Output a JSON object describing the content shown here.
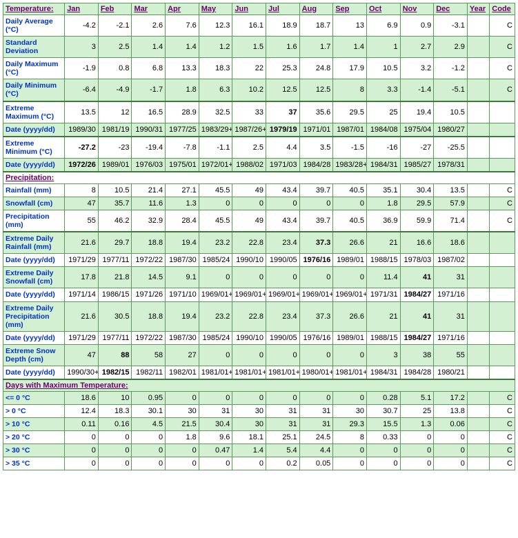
{
  "colgroup": {
    "label_w": 88,
    "month_w": 48,
    "year_w": 32,
    "code_w": 36
  },
  "headers": [
    "Jan",
    "Feb",
    "Mar",
    "Apr",
    "May",
    "Jun",
    "Jul",
    "Aug",
    "Sep",
    "Oct",
    "Nov",
    "Dec",
    "Year",
    "Code"
  ],
  "sections": [
    {
      "title": "Temperature:",
      "shade": true,
      "section_sep": false,
      "rows": [
        {
          "label": "Daily Average (°C)",
          "shade": false,
          "code": "C",
          "cells": [
            "-4.2",
            "-2.1",
            "2.6",
            "7.6",
            "12.3",
            "16.1",
            "18.9",
            "18.7",
            "13",
            "6.9",
            "0.9",
            "-3.1",
            ""
          ],
          "bold": []
        },
        {
          "label": "Standard Deviation",
          "shade": true,
          "code": "C",
          "cells": [
            "3",
            "2.5",
            "1.4",
            "1.4",
            "1.2",
            "1.5",
            "1.6",
            "1.7",
            "1.4",
            "1",
            "2.7",
            "2.9",
            ""
          ],
          "bold": []
        },
        {
          "label": "Daily Maximum (°C)",
          "shade": false,
          "code": "C",
          "cells": [
            "-1.9",
            "0.8",
            "6.8",
            "13.3",
            "18.3",
            "22",
            "25.3",
            "24.8",
            "17.9",
            "10.5",
            "3.2",
            "-1.2",
            ""
          ],
          "bold": []
        },
        {
          "label": "Daily Minimum (°C)",
          "shade": true,
          "code": "C",
          "cells": [
            "-6.4",
            "-4.9",
            "-1.7",
            "1.8",
            "6.3",
            "10.2",
            "12.5",
            "12.5",
            "8",
            "3.3",
            "-1.4",
            "-5.1",
            ""
          ],
          "bold": []
        },
        {
          "label": "Extreme Maximum (°C)",
          "shade": false,
          "sep": true,
          "code": "",
          "cells": [
            "13.5",
            "12",
            "16.5",
            "28.9",
            "32.5",
            "33",
            "37",
            "35.6",
            "29.5",
            "25",
            "19.4",
            "10.5",
            ""
          ],
          "bold": [
            6
          ]
        },
        {
          "label": "Date (yyyy/dd)",
          "shade": true,
          "code": "",
          "cells": [
            "1989/30",
            "1981/19",
            "1990/31",
            "1977/25",
            "1983/29+",
            "1987/26+",
            "1979/19",
            "1971/01",
            "1987/01",
            "1984/08",
            "1975/04",
            "1980/27",
            ""
          ],
          "bold": [
            6
          ]
        },
        {
          "label": "Extreme Minimum (°C)",
          "shade": false,
          "sep": true,
          "code": "",
          "cells": [
            "-27.2",
            "-23",
            "-19.4",
            "-7.8",
            "-1.1",
            "2.5",
            "4.4",
            "3.5",
            "-1.5",
            "-16",
            "-27",
            "-25.5",
            ""
          ],
          "bold": [
            0
          ]
        },
        {
          "label": "Date (yyyy/dd)",
          "shade": true,
          "code": "",
          "cells": [
            "1972/26",
            "1989/01",
            "1976/03",
            "1975/01",
            "1972/01+",
            "1988/02",
            "1971/03",
            "1984/28",
            "1983/28+",
            "1984/31",
            "1985/27",
            "1978/31",
            ""
          ],
          "bold": [
            0
          ]
        }
      ]
    },
    {
      "title": "Precipitation:",
      "shade": false,
      "section_sep": true,
      "rows": [
        {
          "label": "Rainfall (mm)",
          "shade": false,
          "code": "C",
          "cells": [
            "8",
            "10.5",
            "21.4",
            "27.1",
            "45.5",
            "49",
            "43.4",
            "39.7",
            "40.5",
            "35.1",
            "30.4",
            "13.5",
            ""
          ],
          "bold": []
        },
        {
          "label": "Snowfall (cm)",
          "shade": true,
          "code": "C",
          "cells": [
            "47",
            "35.7",
            "11.6",
            "1.3",
            "0",
            "0",
            "0",
            "0",
            "0",
            "1.8",
            "29.5",
            "57.9",
            ""
          ],
          "bold": []
        },
        {
          "label": "Precipitation (mm)",
          "shade": false,
          "code": "C",
          "cells": [
            "55",
            "46.2",
            "32.9",
            "28.4",
            "45.5",
            "49",
            "43.4",
            "39.7",
            "40.5",
            "36.9",
            "59.9",
            "71.4",
            ""
          ],
          "bold": []
        },
        {
          "label": "Extreme Daily Rainfall (mm)",
          "shade": true,
          "sep": true,
          "code": "",
          "cells": [
            "21.6",
            "29.7",
            "18.8",
            "19.4",
            "23.2",
            "22.8",
            "23.4",
            "37.3",
            "26.6",
            "21",
            "16.6",
            "18.6",
            ""
          ],
          "bold": [
            7
          ]
        },
        {
          "label": "Date (yyyy/dd)",
          "shade": false,
          "code": "",
          "cells": [
            "1971/29",
            "1977/11",
            "1972/22",
            "1987/30",
            "1985/24",
            "1990/10",
            "1990/05",
            "1976/16",
            "1989/01",
            "1988/15",
            "1978/03",
            "1987/02",
            ""
          ],
          "bold": [
            7
          ]
        },
        {
          "label": "Extreme Daily Snowfall (cm)",
          "shade": true,
          "code": "",
          "cells": [
            "17.8",
            "21.8",
            "14.5",
            "9.1",
            "0",
            "0",
            "0",
            "0",
            "0",
            "11.4",
            "41",
            "31",
            ""
          ],
          "bold": [
            10
          ]
        },
        {
          "label": "Date (yyyy/dd)",
          "shade": false,
          "code": "",
          "cells": [
            "1971/14",
            "1986/15",
            "1971/26",
            "1971/10",
            "1969/01+",
            "1969/01+",
            "1969/01+",
            "1969/01+",
            "1969/01+",
            "1971/31",
            "1984/27",
            "1971/16",
            ""
          ],
          "bold": [
            10
          ]
        },
        {
          "label": "Extreme Daily Precipitation (mm)",
          "shade": true,
          "code": "",
          "cells": [
            "21.6",
            "30.5",
            "18.8",
            "19.4",
            "23.2",
            "22.8",
            "23.4",
            "37.3",
            "26.6",
            "21",
            "41",
            "31",
            ""
          ],
          "bold": [
            10
          ]
        },
        {
          "label": "Date (yyyy/dd)",
          "shade": false,
          "code": "",
          "cells": [
            "1971/29",
            "1977/11",
            "1972/22",
            "1987/30",
            "1985/24",
            "1990/10",
            "1990/05",
            "1976/16",
            "1989/01",
            "1988/15",
            "1984/27",
            "1971/16",
            ""
          ],
          "bold": [
            10
          ]
        },
        {
          "label": "Extreme Snow Depth (cm)",
          "shade": true,
          "code": "",
          "cells": [
            "47",
            "88",
            "58",
            "27",
            "0",
            "0",
            "0",
            "0",
            "0",
            "3",
            "38",
            "55",
            ""
          ],
          "bold": [
            1
          ]
        },
        {
          "label": "Date (yyyy/dd)",
          "shade": false,
          "code": "",
          "cells": [
            "1990/30+",
            "1982/15",
            "1982/11",
            "1982/01",
            "1981/01+",
            "1981/01+",
            "1981/01+",
            "1980/01+",
            "1981/01+",
            "1984/31",
            "1984/28",
            "1980/21",
            ""
          ],
          "bold": [
            1
          ]
        }
      ]
    },
    {
      "title": "Days with Maximum Temperature:",
      "shade": true,
      "section_sep": true,
      "rows": [
        {
          "label": "<= 0 °C",
          "shade": true,
          "code": "C",
          "cells": [
            "18.6",
            "10",
            "0.95",
            "0",
            "0",
            "0",
            "0",
            "0",
            "0",
            "0.28",
            "5.1",
            "17.2",
            ""
          ],
          "bold": []
        },
        {
          "label": "> 0 °C",
          "shade": false,
          "code": "C",
          "cells": [
            "12.4",
            "18.3",
            "30.1",
            "30",
            "31",
            "30",
            "31",
            "31",
            "30",
            "30.7",
            "25",
            "13.8",
            ""
          ],
          "bold": []
        },
        {
          "label": "> 10 °C",
          "shade": true,
          "code": "C",
          "cells": [
            "0.11",
            "0.16",
            "4.5",
            "21.5",
            "30.4",
            "30",
            "31",
            "31",
            "29.3",
            "15.5",
            "1.3",
            "0.06",
            ""
          ],
          "bold": []
        },
        {
          "label": "> 20 °C",
          "shade": false,
          "code": "C",
          "cells": [
            "0",
            "0",
            "0",
            "1.8",
            "9.6",
            "18.1",
            "25.1",
            "24.5",
            "8",
            "0.33",
            "0",
            "0",
            ""
          ],
          "bold": []
        },
        {
          "label": "> 30 °C",
          "shade": true,
          "code": "C",
          "cells": [
            "0",
            "0",
            "0",
            "0",
            "0.47",
            "1.4",
            "5.4",
            "4.4",
            "0",
            "0",
            "0",
            "0",
            ""
          ],
          "bold": []
        },
        {
          "label": "> 35 °C",
          "shade": false,
          "code": "C",
          "cells": [
            "0",
            "0",
            "0",
            "0",
            "0",
            "0",
            "0.2",
            "0.05",
            "0",
            "0",
            "0",
            "0",
            ""
          ],
          "bold": []
        }
      ]
    }
  ]
}
